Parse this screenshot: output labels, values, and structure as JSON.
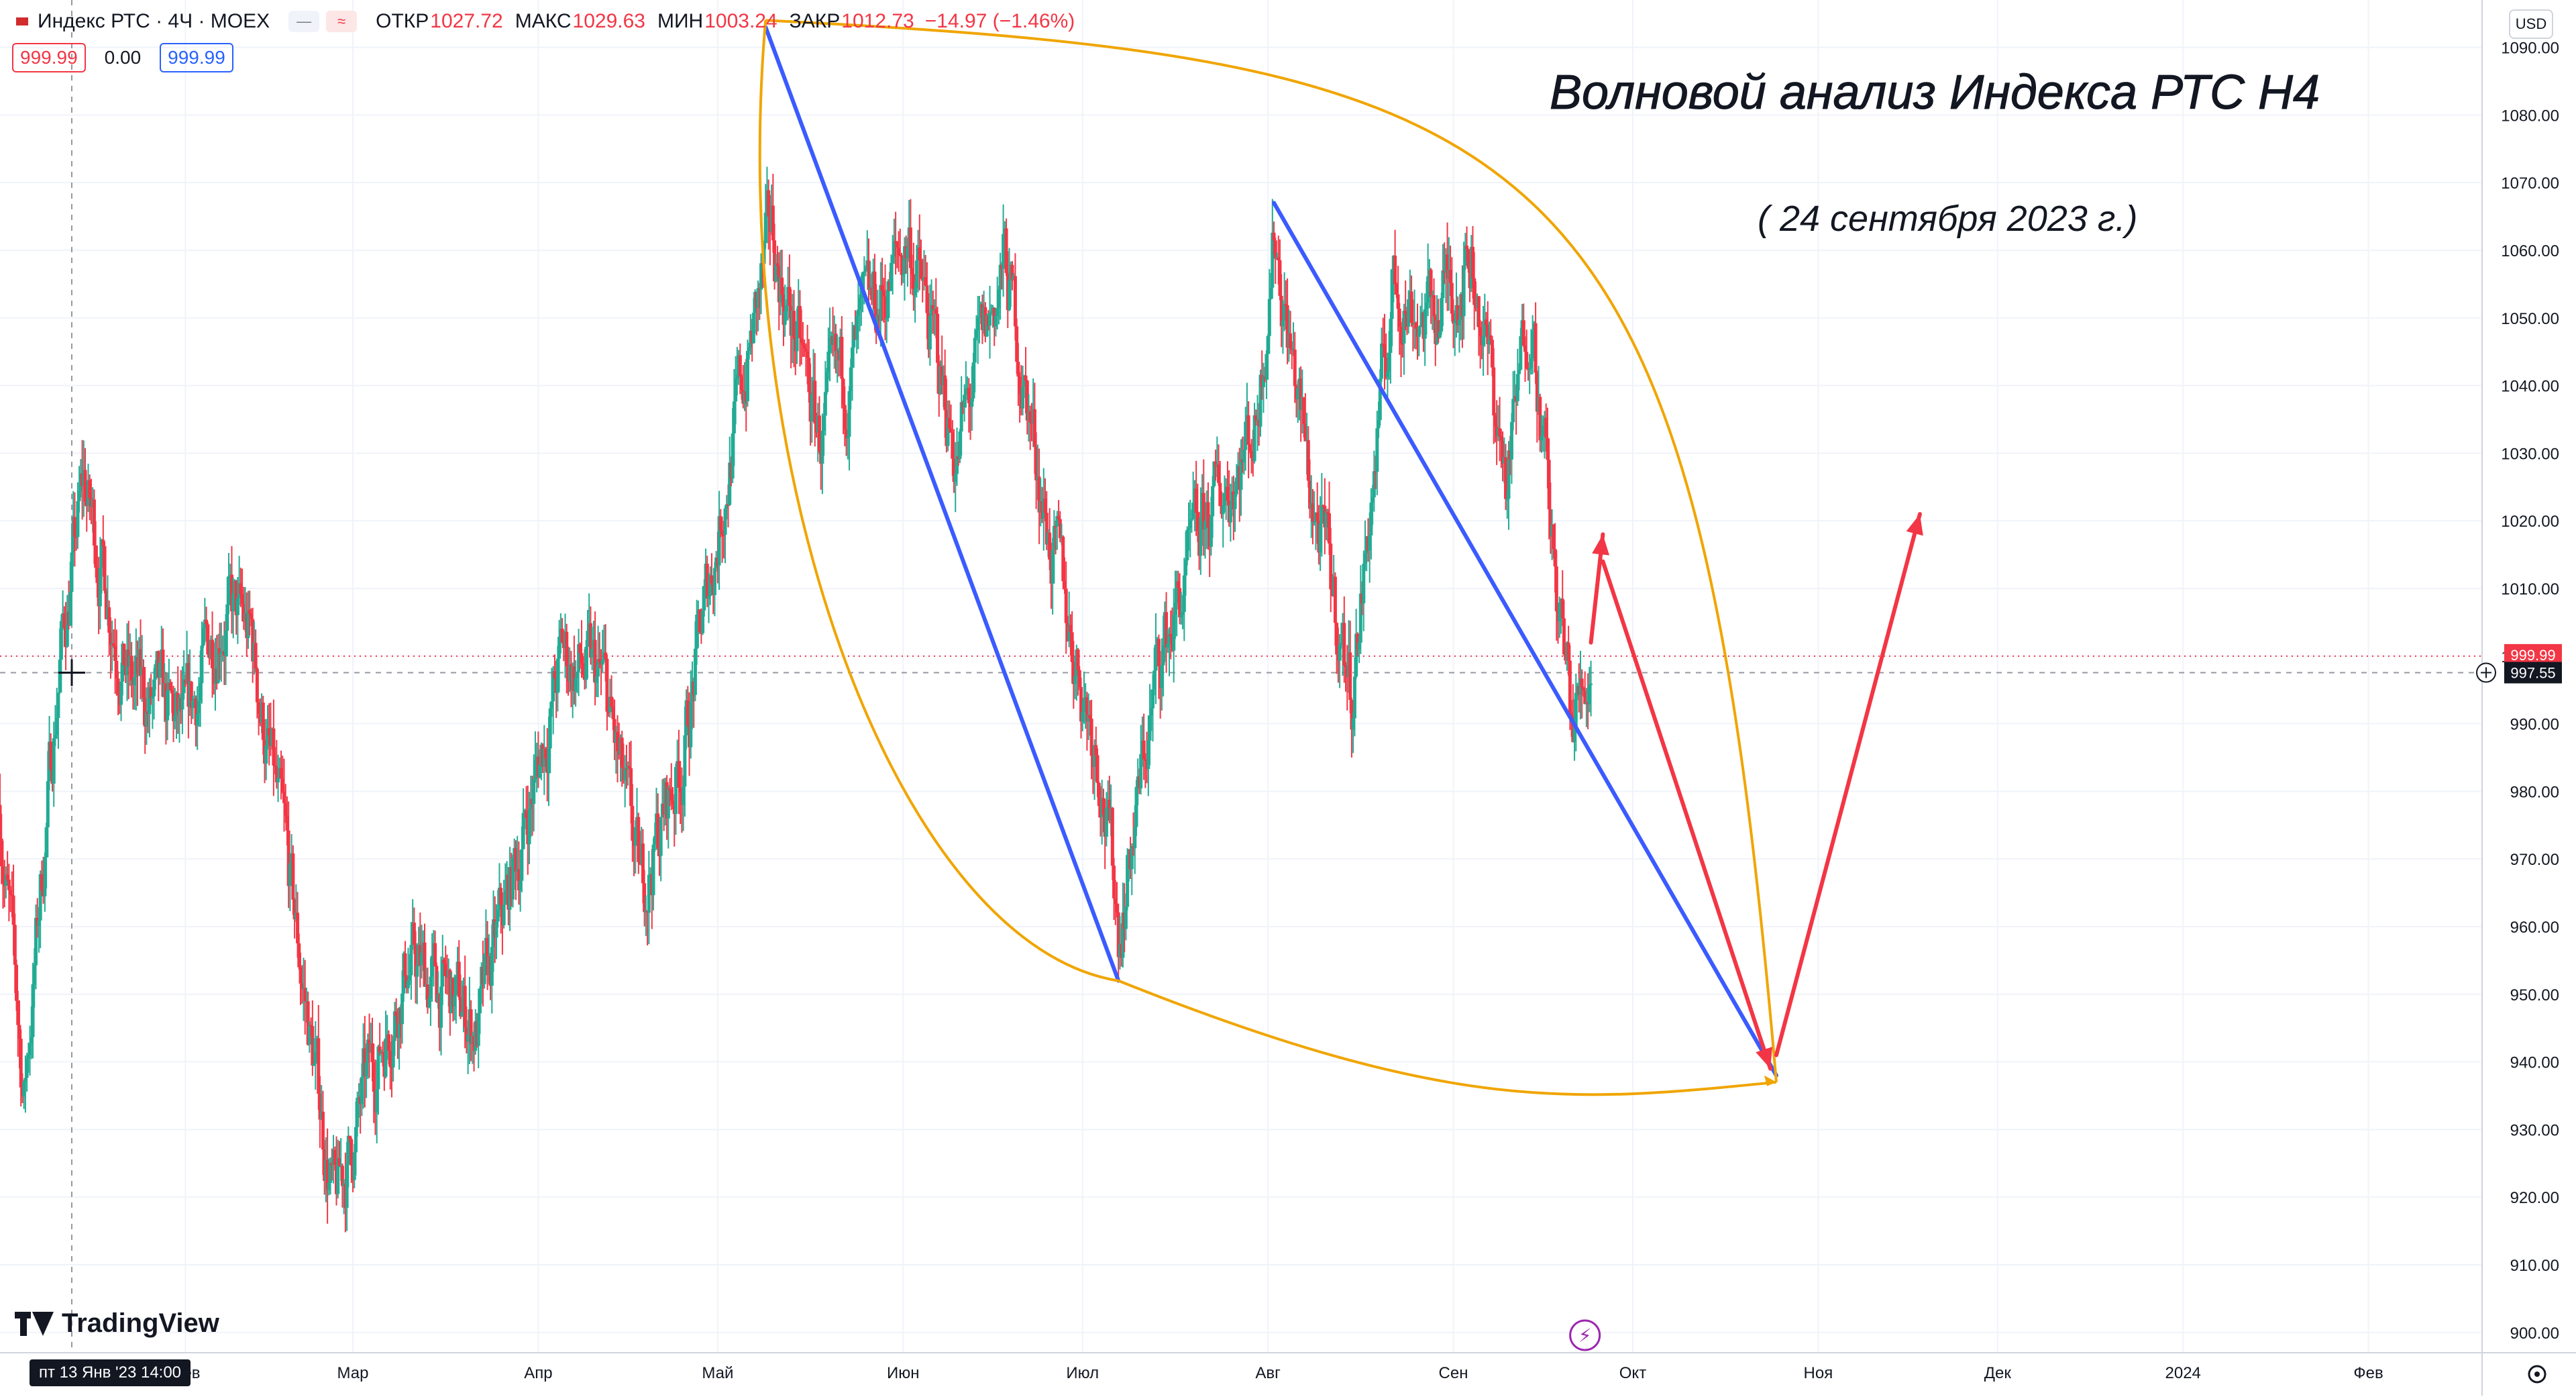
{
  "header": {
    "symbol": "Индекс РТС · 4Ч · MOEX",
    "ohlc": [
      {
        "label": "ОТКР",
        "value": "1027.72"
      },
      {
        "label": "МАКС",
        "value": "1029.63"
      },
      {
        "label": "МИН",
        "value": "1003.24"
      },
      {
        "label": "ЗАКР",
        "value": "1012.73"
      }
    ],
    "change": "−14.97 (−1.46%)",
    "bid": "999.99",
    "spread": "0.00",
    "ask": "999.99",
    "currency": "USD"
  },
  "annotation": {
    "title": "Волновой анализ Индекса РТС Н4",
    "date": "( 24 сентября 2023 г.)"
  },
  "price_labels": {
    "last": "999.99",
    "cursor": "997.55"
  },
  "cursor_time": "пт 13 Янв '23   14:00",
  "branding": "TradingView",
  "colors": {
    "up": "#22ab94",
    "down": "#f23645",
    "trend_line": "#3b5bff",
    "arc": "#f0a500",
    "forecast_arrow": "#f23645"
  },
  "chart_data": {
    "type": "candlestick",
    "title": "",
    "interval": "4Ч",
    "y_axis": {
      "min": 897,
      "max": 1097,
      "ticks": [
        "900.00",
        "910.00",
        "920.00",
        "930.00",
        "940.00",
        "950.00",
        "960.00",
        "970.00",
        "980.00",
        "990.00",
        "1000.00",
        "1010.00",
        "1020.00",
        "1030.00",
        "1040.00",
        "1050.00",
        "1060.00",
        "1070.00",
        "1080.00",
        "1090.00"
      ]
    },
    "x_axis": {
      "start": "2023-01-01",
      "end": "2024-02-20",
      "labels": [
        {
          "text": "Фев",
          "date": "2023-02-01"
        },
        {
          "text": "Мар",
          "date": "2023-03-01"
        },
        {
          "text": "Апр",
          "date": "2023-04-01"
        },
        {
          "text": "Май",
          "date": "2023-05-01"
        },
        {
          "text": "Июн",
          "date": "2023-06-01"
        },
        {
          "text": "Июл",
          "date": "2023-07-01"
        },
        {
          "text": "Авг",
          "date": "2023-08-01"
        },
        {
          "text": "Сен",
          "date": "2023-09-01"
        },
        {
          "text": "Окт",
          "date": "2023-10-01"
        },
        {
          "text": "Ноя",
          "date": "2023-11-01"
        },
        {
          "text": "Дек",
          "date": "2023-12-01"
        },
        {
          "text": "2024",
          "date": "2024-01-01"
        },
        {
          "text": "Фев",
          "date": "2024-02-01"
        }
      ]
    },
    "price_path": [
      {
        "date": "2023-01-01",
        "price": 978
      },
      {
        "date": "2023-01-05",
        "price": 935
      },
      {
        "date": "2023-01-11",
        "price": 1000
      },
      {
        "date": "2023-01-15",
        "price": 1025
      },
      {
        "date": "2023-01-23",
        "price": 995
      },
      {
        "date": "2023-02-01",
        "price": 988
      },
      {
        "date": "2023-02-07",
        "price": 1008
      },
      {
        "date": "2023-02-12",
        "price": 1002
      },
      {
        "date": "2023-02-18",
        "price": 968
      },
      {
        "date": "2023-02-26",
        "price": 918
      },
      {
        "date": "2023-03-03",
        "price": 935
      },
      {
        "date": "2023-03-10",
        "price": 955
      },
      {
        "date": "2023-03-22",
        "price": 945
      },
      {
        "date": "2023-03-28",
        "price": 968
      },
      {
        "date": "2023-04-05",
        "price": 1000
      },
      {
        "date": "2023-04-12",
        "price": 995
      },
      {
        "date": "2023-04-18",
        "price": 965
      },
      {
        "date": "2023-04-25",
        "price": 985
      },
      {
        "date": "2023-05-03",
        "price": 1030
      },
      {
        "date": "2023-05-10",
        "price": 1062
      },
      {
        "date": "2023-05-18",
        "price": 1032
      },
      {
        "date": "2023-05-26",
        "price": 1048
      },
      {
        "date": "2023-06-02",
        "price": 1062
      },
      {
        "date": "2023-06-10",
        "price": 1030
      },
      {
        "date": "2023-06-18",
        "price": 1058
      },
      {
        "date": "2023-06-26",
        "price": 1015
      },
      {
        "date": "2023-07-04",
        "price": 985
      },
      {
        "date": "2023-07-07",
        "price": 960
      },
      {
        "date": "2023-07-14",
        "price": 1000
      },
      {
        "date": "2023-07-22",
        "price": 1020
      },
      {
        "date": "2023-07-30",
        "price": 1035
      },
      {
        "date": "2023-08-02",
        "price": 1064
      },
      {
        "date": "2023-08-08",
        "price": 1025
      },
      {
        "date": "2023-08-15",
        "price": 995
      },
      {
        "date": "2023-08-22",
        "price": 1055
      },
      {
        "date": "2023-08-28",
        "price": 1050
      },
      {
        "date": "2023-09-04",
        "price": 1060
      },
      {
        "date": "2023-09-10",
        "price": 1025
      },
      {
        "date": "2023-09-14",
        "price": 1055
      },
      {
        "date": "2023-09-18",
        "price": 1010
      },
      {
        "date": "2023-09-21",
        "price": 990
      },
      {
        "date": "2023-09-24",
        "price": 1000
      }
    ],
    "drawings": {
      "trend_lines": [
        {
          "from": {
            "date": "2023-05-09",
            "price": 1093
          },
          "to": {
            "date": "2023-07-07",
            "price": 952
          }
        },
        {
          "from": {
            "date": "2023-08-02",
            "price": 1067
          },
          "to": {
            "date": "2023-10-25",
            "price": 938
          }
        }
      ],
      "arc": {
        "points": [
          {
            "date": "2023-05-09",
            "price": 1094
          },
          {
            "date": "2023-07-07",
            "price": 952
          },
          {
            "date": "2023-10-25",
            "price": 937
          }
        ]
      },
      "forecast_arrows": [
        {
          "from": {
            "date": "2023-09-24",
            "price": 1002
          },
          "to": {
            "date": "2023-09-26",
            "price": 1018
          }
        },
        {
          "from": {
            "date": "2023-09-26",
            "price": 1014
          },
          "to": {
            "date": "2023-10-24",
            "price": 939
          }
        },
        {
          "from": {
            "date": "2023-10-25",
            "price": 941
          },
          "to": {
            "date": "2023-11-18",
            "price": 1021
          }
        }
      ]
    }
  }
}
